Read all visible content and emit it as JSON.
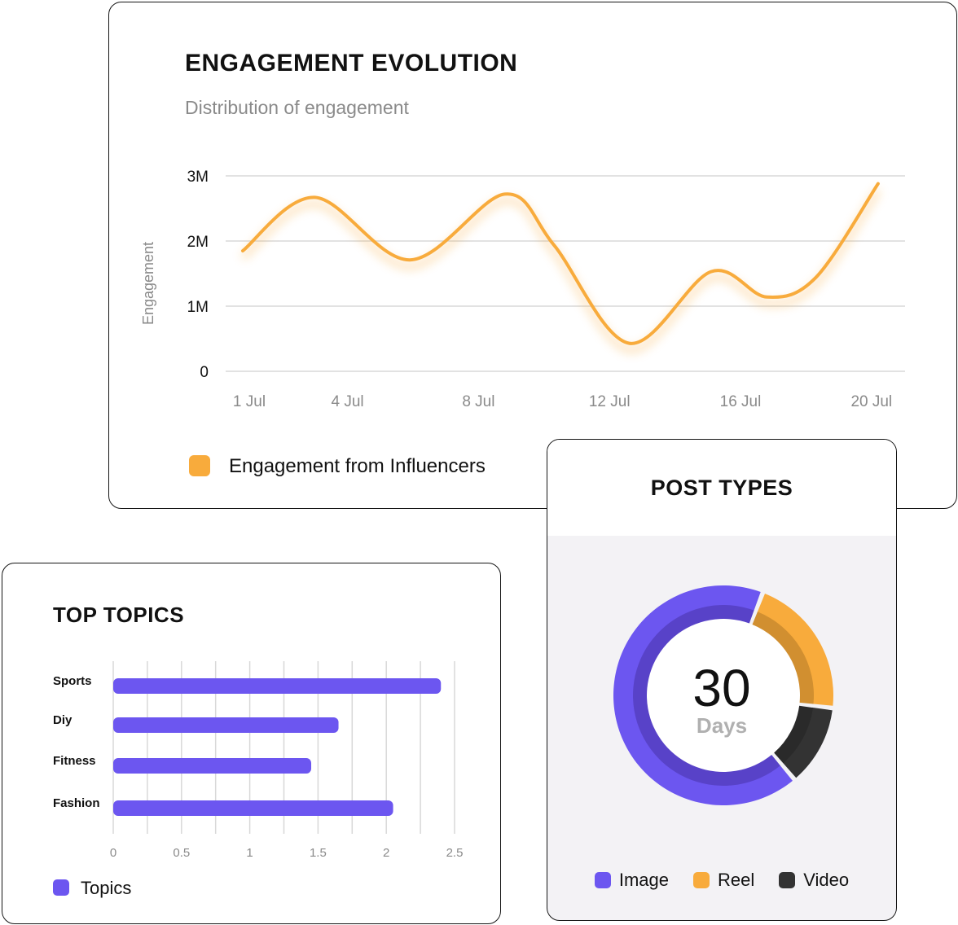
{
  "colors": {
    "accent_orange": "#f8ab3c",
    "accent_purple": "#6c56f0",
    "video": "#333333",
    "grid": "#d8d8d8"
  },
  "engagement": {
    "title": "ENGAGEMENT EVOLUTION",
    "subtitle": "Distribution of engagement",
    "legend": "Engagement from Influencers"
  },
  "topics": {
    "title": "TOP TOPICS",
    "legend": "Topics"
  },
  "posts": {
    "title": "POST TYPES",
    "center_value": "30",
    "center_label": "Days"
  },
  "chart_data": [
    {
      "type": "line",
      "title": "ENGAGEMENT EVOLUTION",
      "subtitle": "Distribution of engagement",
      "ylabel": "Engagement",
      "xlabel": "",
      "ylim": [
        0,
        3000000
      ],
      "yticks": [
        {
          "v": 0,
          "label": "0"
        },
        {
          "v": 1000000,
          "label": "1M"
        },
        {
          "v": 2000000,
          "label": "2M"
        },
        {
          "v": 3000000,
          "label": "3M"
        }
      ],
      "xticks": [
        {
          "v": 1,
          "label": "1 Jul"
        },
        {
          "v": 4,
          "label": "4 Jul"
        },
        {
          "v": 8,
          "label": "8 Jul"
        },
        {
          "v": 12,
          "label": "12 Jul"
        },
        {
          "v": 16,
          "label": "16 Jul"
        },
        {
          "v": 20,
          "label": "20 Jul"
        }
      ],
      "grid": true,
      "series": [
        {
          "name": "Engagement from Influencers",
          "x": [
            1,
            3.2,
            6.1,
            9,
            10.5,
            12.8,
            15.3,
            17,
            18.5,
            20.4
          ],
          "values": [
            1850000,
            2670000,
            1710000,
            2720000,
            1940000,
            430000,
            1530000,
            1140000,
            1440000,
            2880000
          ]
        }
      ],
      "legend_position": "bottom-left"
    },
    {
      "type": "bar",
      "orientation": "horizontal",
      "title": "TOP TOPICS",
      "categories": [
        "Sports",
        "Diy",
        "Fitness",
        "Fashion"
      ],
      "series": [
        {
          "name": "Topics",
          "values": [
            2.4,
            1.65,
            1.45,
            2.05
          ]
        }
      ],
      "xlim": [
        0,
        2.5
      ],
      "xticks": [
        "0",
        "0.5",
        "1",
        "1.5",
        "2",
        "2.5"
      ],
      "grid": true,
      "legend_position": "bottom-left"
    },
    {
      "type": "pie",
      "style": "donut",
      "title": "POST TYPES",
      "labels": [
        "Image",
        "Reel",
        "Video"
      ],
      "values": [
        67,
        21,
        12
      ],
      "legend_position": "bottom"
    }
  ]
}
